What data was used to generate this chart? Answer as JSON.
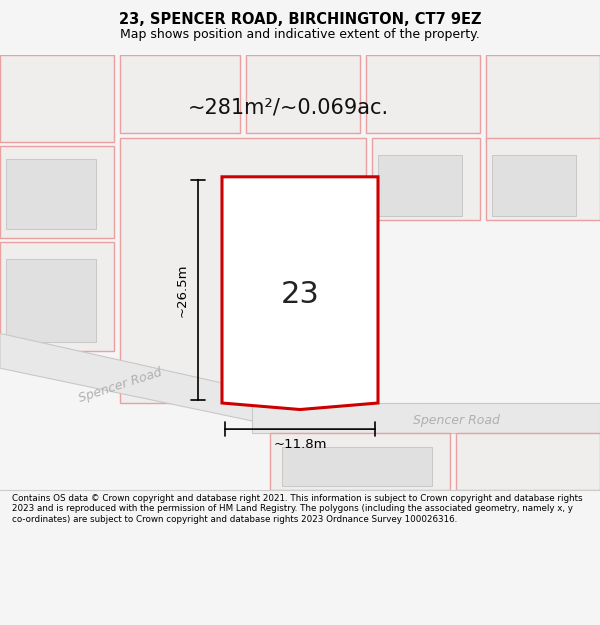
{
  "title": "23, SPENCER ROAD, BIRCHINGTON, CT7 9EZ",
  "subtitle": "Map shows position and indicative extent of the property.",
  "area_text": "~281m²/~0.069ac.",
  "number_label": "23",
  "dim_height": "~26.5m",
  "dim_width": "~11.8m",
  "road_label_left": "Spencer Road",
  "road_label_right": "Spencer Road",
  "footer_text": "Contains OS data © Crown copyright and database right 2021. This information is subject to Crown copyright and database rights 2023 and is reproduced with the permission of HM Land Registry. The polygons (including the associated geometry, namely x, y co-ordinates) are subject to Crown copyright and database rights 2023 Ordnance Survey 100026316.",
  "bg_color": "#f5f5f5",
  "map_bg": "#ffffff",
  "parcel_fill": "#f0eded",
  "parcel_edge": "#e8a0a0",
  "inner_fill": "#e0e0e0",
  "inner_edge": "#c8c8c8",
  "highlight_fill": "#ffffff",
  "highlight_stroke": "#cc0000",
  "road_fill": "#e8e8e8",
  "road_edge": "#c8c8c8",
  "footer_bg": "#ffffff",
  "footer_line": "#cccccc"
}
